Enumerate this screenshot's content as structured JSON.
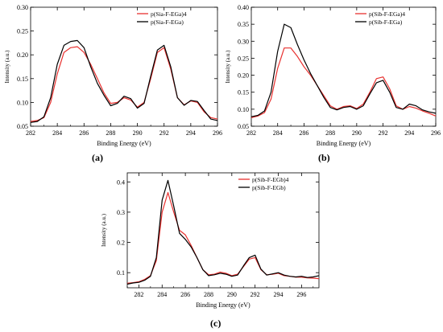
{
  "figure": {
    "panel_labels": [
      "(a)",
      "(b)",
      "(c)"
    ]
  },
  "chart_data": [
    {
      "type": "line",
      "panel": "(a)",
      "xlabel": "Binding Energy (eV)",
      "ylabel": "Intensity (a.u.)",
      "xlim": [
        282,
        296
      ],
      "ylim": [
        0.05,
        0.3
      ],
      "xticks": [
        282,
        284,
        286,
        288,
        290,
        292,
        294,
        296
      ],
      "yticks": [
        0.05,
        0.1,
        0.15,
        0.2,
        0.25,
        0.3
      ],
      "ytick_labels": [
        "0.05",
        "0.10",
        "0.15",
        "0.20",
        "0.25",
        "0.30"
      ],
      "legend_position": "top-right",
      "series": [
        {
          "name": "p(Sia-F-EGa)4",
          "color": "#e8312f",
          "x": [
            282,
            282.5,
            283,
            283.5,
            284,
            284.5,
            285,
            285.5,
            286,
            286.5,
            287,
            287.5,
            288,
            288.5,
            289,
            289.5,
            290,
            290.5,
            291,
            291.5,
            292,
            292.5,
            293,
            293.5,
            294,
            294.5,
            295,
            295.5,
            296
          ],
          "y": [
            0.06,
            0.062,
            0.068,
            0.1,
            0.16,
            0.205,
            0.215,
            0.217,
            0.205,
            0.18,
            0.15,
            0.12,
            0.098,
            0.1,
            0.11,
            0.105,
            0.09,
            0.1,
            0.15,
            0.205,
            0.215,
            0.17,
            0.11,
            0.095,
            0.103,
            0.1,
            0.08,
            0.068,
            0.065
          ]
        },
        {
          "name": "p(Sia-F-EGa)",
          "color": "#000000",
          "x": [
            282,
            282.5,
            283,
            283.5,
            284,
            284.5,
            285,
            285.5,
            286,
            286.5,
            287,
            287.5,
            288,
            288.5,
            289,
            289.5,
            290,
            290.5,
            291,
            291.5,
            292,
            292.5,
            293,
            293.5,
            294,
            294.5,
            295,
            295.5,
            296
          ],
          "y": [
            0.058,
            0.06,
            0.07,
            0.11,
            0.18,
            0.22,
            0.228,
            0.23,
            0.215,
            0.175,
            0.14,
            0.115,
            0.093,
            0.098,
            0.113,
            0.108,
            0.088,
            0.098,
            0.155,
            0.21,
            0.22,
            0.175,
            0.11,
            0.094,
            0.104,
            0.102,
            0.083,
            0.065,
            0.062
          ]
        }
      ]
    },
    {
      "type": "line",
      "panel": "(b)",
      "xlabel": "Binding Energy (eV)",
      "ylabel": "Intensity (a.u.)",
      "xlim": [
        282,
        296
      ],
      "ylim": [
        0.05,
        0.4
      ],
      "xticks": [
        282,
        284,
        286,
        288,
        290,
        292,
        294,
        296
      ],
      "yticks": [
        0.05,
        0.1,
        0.15,
        0.2,
        0.25,
        0.3,
        0.35,
        0.4
      ],
      "ytick_labels": [
        "0.05",
        "0.10",
        "0.15",
        "0.20",
        "0.25",
        "0.30",
        "0.35",
        "0.40"
      ],
      "legend_position": "top-right",
      "series": [
        {
          "name": "p(Sib-F-EGa)4",
          "color": "#e8312f",
          "x": [
            282,
            282.5,
            283,
            283.5,
            284,
            284.5,
            285,
            285.5,
            286,
            286.5,
            287,
            287.5,
            288,
            288.5,
            289,
            289.5,
            290,
            290.5,
            291,
            291.5,
            292,
            292.5,
            293,
            293.5,
            294,
            294.5,
            295,
            295.5,
            296
          ],
          "y": [
            0.075,
            0.08,
            0.09,
            0.13,
            0.22,
            0.28,
            0.28,
            0.255,
            0.225,
            0.2,
            0.17,
            0.14,
            0.11,
            0.1,
            0.108,
            0.11,
            0.102,
            0.115,
            0.15,
            0.19,
            0.195,
            0.16,
            0.11,
            0.1,
            0.108,
            0.103,
            0.095,
            0.088,
            0.08
          ]
        },
        {
          "name": "p(Sib-F-EGa)",
          "color": "#000000",
          "x": [
            282,
            282.5,
            283,
            283.5,
            284,
            284.5,
            285,
            285.5,
            286,
            286.5,
            287,
            287.5,
            288,
            288.5,
            289,
            289.5,
            290,
            290.5,
            291,
            291.5,
            292,
            292.5,
            293,
            293.5,
            294,
            294.5,
            295,
            295.5,
            296
          ],
          "y": [
            0.078,
            0.082,
            0.095,
            0.15,
            0.27,
            0.35,
            0.34,
            0.29,
            0.245,
            0.205,
            0.17,
            0.135,
            0.105,
            0.098,
            0.105,
            0.108,
            0.1,
            0.11,
            0.145,
            0.178,
            0.185,
            0.15,
            0.105,
            0.1,
            0.115,
            0.11,
            0.098,
            0.092,
            0.088
          ]
        }
      ]
    },
    {
      "type": "line",
      "panel": "(c)",
      "xlabel": "Binding Energy (eV)",
      "ylabel": "Intensity (a.u.)",
      "xlim": [
        281,
        297.5
      ],
      "ylim": [
        0.05,
        0.43
      ],
      "xticks": [
        282,
        284,
        286,
        288,
        290,
        292,
        294,
        296
      ],
      "yticks": [
        0.1,
        0.2,
        0.3,
        0.4
      ],
      "ytick_labels": [
        "0.1",
        "0.2",
        "0.3",
        "0.4"
      ],
      "legend_position": "top-right",
      "series": [
        {
          "name": "p(Sib-F-EGb)4",
          "color": "#e8312f",
          "x": [
            281,
            281.5,
            282,
            282.5,
            283,
            283.5,
            284,
            284.5,
            285,
            285.5,
            286,
            286.5,
            287,
            287.5,
            288,
            288.5,
            289,
            289.5,
            290,
            290.5,
            291,
            291.5,
            292,
            292.5,
            293,
            293.5,
            294,
            294.5,
            295,
            295.5,
            296,
            296.5,
            297,
            297.5
          ],
          "y": [
            0.065,
            0.067,
            0.07,
            0.078,
            0.09,
            0.14,
            0.3,
            0.365,
            0.3,
            0.24,
            0.225,
            0.19,
            0.15,
            0.11,
            0.093,
            0.095,
            0.102,
            0.098,
            0.09,
            0.095,
            0.12,
            0.145,
            0.15,
            0.11,
            0.093,
            0.095,
            0.098,
            0.09,
            0.088,
            0.085,
            0.085,
            0.083,
            0.082,
            0.08
          ]
        },
        {
          "name": "p(Sib-F-EGb)",
          "color": "#000000",
          "x": [
            281,
            281.5,
            282,
            282.5,
            283,
            283.5,
            284,
            284.5,
            285,
            285.5,
            286,
            286.5,
            287,
            287.5,
            288,
            288.5,
            289,
            289.5,
            290,
            290.5,
            291,
            291.5,
            292,
            292.5,
            293,
            293.5,
            294,
            294.5,
            295,
            295.5,
            296,
            296.5,
            297,
            297.5
          ],
          "y": [
            0.062,
            0.066,
            0.068,
            0.075,
            0.088,
            0.15,
            0.34,
            0.405,
            0.32,
            0.23,
            0.21,
            0.185,
            0.15,
            0.11,
            0.09,
            0.093,
            0.098,
            0.095,
            0.088,
            0.092,
            0.122,
            0.15,
            0.158,
            0.112,
            0.092,
            0.096,
            0.1,
            0.092,
            0.088,
            0.086,
            0.088,
            0.084,
            0.086,
            0.09
          ]
        }
      ]
    }
  ]
}
